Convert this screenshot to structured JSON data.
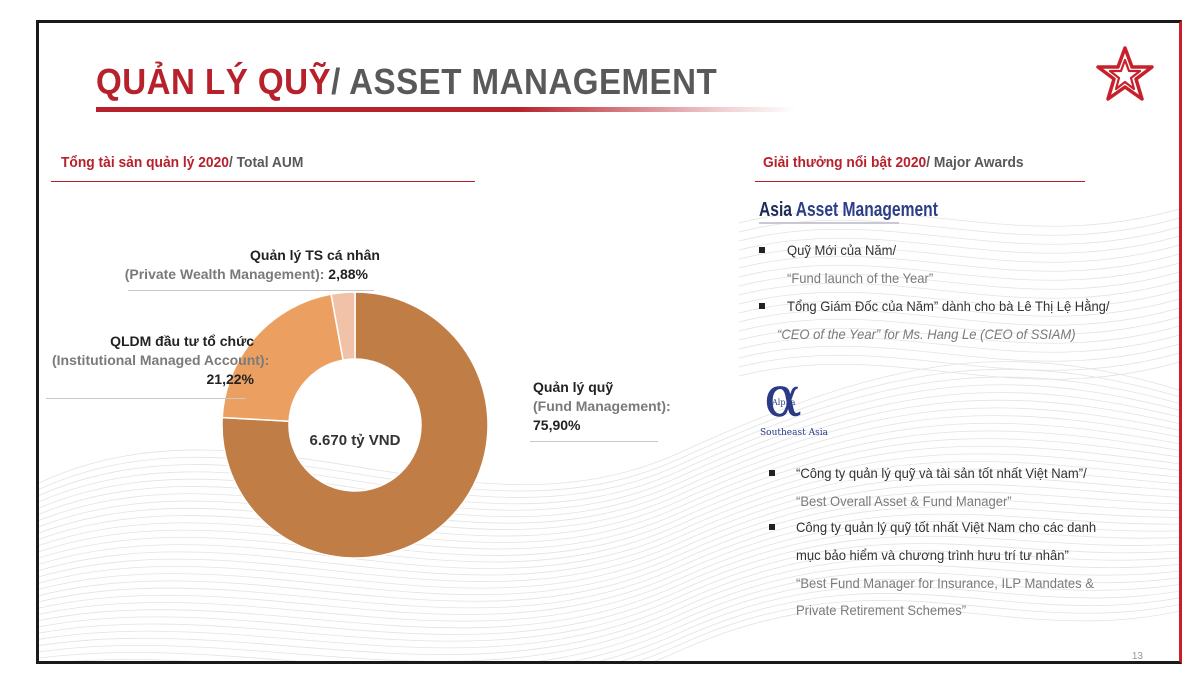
{
  "title": {
    "vn": "QUẢN LÝ QUỸ",
    "en": "/ ASSET MANAGEMENT"
  },
  "aum": {
    "heading_vn": "Tổng tài sản quản lý 2020",
    "heading_en": "/ Total AUM",
    "total_label": "6.670 tỷ VND",
    "labels": {
      "private_vn": "Quản lý TS cá nhân",
      "private_en": "(Private Wealth Management):",
      "private_value": "2,88%",
      "institutional_vn": "QLDM đầu tư tổ chức",
      "institutional_en": "(Institutional Managed Account):",
      "institutional_value": "21,22%",
      "fund_vn": "Quản lý quỹ",
      "fund_en": "(Fund Management):",
      "fund_value": "75,90%"
    }
  },
  "chart_data": {
    "type": "pie",
    "categories": [
      "Quản lý quỹ (Fund Management)",
      "QLDM đầu tư tổ chức (Institutional Managed Account)",
      "Quản lý TS cá nhân (Private Wealth Management)"
    ],
    "values": [
      75.9,
      21.22,
      2.88
    ],
    "colors": [
      "#c07d46",
      "#eba062",
      "#f2c2a8"
    ],
    "donut": true,
    "center_text": "6.670 tỷ VND"
  },
  "awards": {
    "heading_vn": "Giải thưởng nổi bật 2020",
    "heading_en": "/ Major Awards",
    "logo1_name": "asia-asset-management-logo",
    "logo1_text_a": "Asia ",
    "logo1_text_b": "Asset Management",
    "aam_items": [
      {
        "vn": "Quỹ Mới của Năm/",
        "en": "“Fund launch of the Year”"
      },
      {
        "vn": "Tổng Giám Đốc của Năm” dành cho bà Lê Thị Lệ Hằng/",
        "en": "“CEO of the Year” for Ms. Hang Le (CEO of SSIAM)"
      }
    ],
    "logo2_name": "alpha-southeast-asia-logo",
    "logo2_glyph": "α",
    "logo2_word": "Alpha",
    "logo2_sub": "Southeast Asia",
    "alpha_items": [
      {
        "vn": "“Công ty quản lý quỹ và tài sản tốt nhất Việt Nam”/",
        "en": "“Best Overall Asset & Fund Manager”"
      },
      {
        "vn1": "Công ty quản lý quỹ tốt nhất Việt Nam cho các danh",
        "vn2": "mục bảo hiểm và chương trình hưu trí tư nhân”",
        "en1": "“Best Fund Manager for Insurance, ILP Mandates &",
        "en2": "Private Retirement Schemes”"
      }
    ]
  },
  "page_number": "13",
  "colors": {
    "accent": "#b7212b",
    "gray": "#595959"
  }
}
